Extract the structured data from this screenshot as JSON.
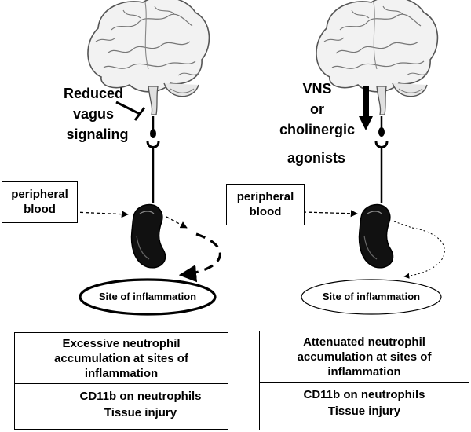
{
  "left_panel": {
    "signal_label": [
      "Reduced",
      "vagus",
      "signaling"
    ],
    "blood_label": [
      "peripheral",
      "blood"
    ],
    "site_label": "Site of inflammation",
    "outcome_header": [
      "Excessive neutrophil",
      "accumulation at sites of",
      "inflammation"
    ],
    "outcome_effects": [
      "CD11b on neutrophils",
      "Tissue injury"
    ],
    "outcome_direction": "up"
  },
  "right_panel": {
    "signal_label": [
      "VNS",
      "or",
      "cholinergic"
    ],
    "signal_label_extra": "agonists",
    "blood_label": [
      "peripheral",
      "blood"
    ],
    "site_label": "Site of inflammation",
    "outcome_header": [
      "Attenuated neutrophil",
      "accumulation at sites of",
      "inflammation"
    ],
    "outcome_effects": [
      "CD11b on neutrophils",
      "Tissue injury"
    ],
    "outcome_direction": "down"
  },
  "icons": {
    "brain": "brain-icon",
    "neutrophil": "neutrophil-icon",
    "synapse": "synapse-icon",
    "inhibit": "inhibit-arrow-icon",
    "up_arrow": "up-arrow-icon",
    "down_arrow": "down-arrow-icon"
  },
  "colors": {
    "ink": "#000000",
    "brain_shade": "#e6e6e6",
    "background": "#ffffff"
  }
}
